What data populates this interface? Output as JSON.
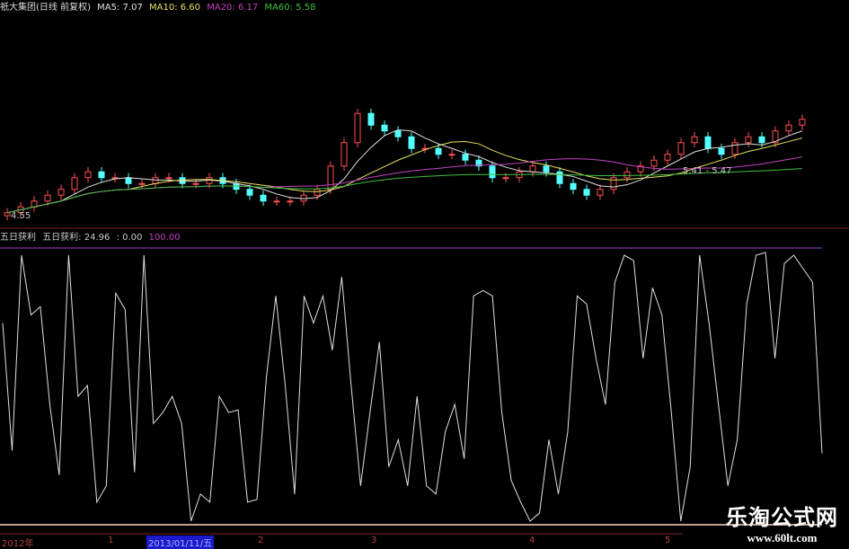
{
  "header": {
    "title": "祇大集团(日线 前复权)",
    "ma5": "MA5: 7.07",
    "ma10": "MA10: 6.60",
    "ma20": "MA20: 6.17",
    "ma60": "MA60: 5.58",
    "low_label": "4.55",
    "range_label": "5.41 - 5.47"
  },
  "oscillator": {
    "name": "五日获利",
    "label": "五日获利: 24.96",
    "v2": ": 0.00",
    "v3": "100.00"
  },
  "x_axis": {
    "labels": [
      "2012年",
      "1",
      "2013/01/11/五",
      "2",
      "3",
      "4",
      "5"
    ]
  },
  "watermark": {
    "title": "乐淘公式网",
    "url": "www.60lt.com"
  },
  "colors": {
    "up": "#ff5050",
    "down": "#54ffff",
    "ma5": "#e0e0e0",
    "ma10": "#e8e060",
    "ma20": "#c040c0",
    "ma60": "#40c040",
    "osc": "#e0e0e0"
  },
  "chart_data": [
    {
      "type": "candlestick",
      "closes": [
        4.6,
        4.7,
        4.8,
        4.9,
        5.0,
        5.2,
        5.3,
        5.2,
        5.2,
        5.1,
        5.1,
        5.2,
        5.2,
        5.1,
        5.1,
        5.2,
        5.1,
        5.0,
        4.9,
        4.8,
        4.8,
        4.8,
        4.9,
        5.0,
        5.4,
        5.8,
        6.3,
        6.1,
        6.0,
        5.9,
        5.7,
        5.7,
        5.6,
        5.6,
        5.5,
        5.4,
        5.2,
        5.2,
        5.3,
        5.4,
        5.3,
        5.1,
        5.0,
        4.9,
        5.0,
        5.2,
        5.3,
        5.4,
        5.5,
        5.6,
        5.8,
        5.9,
        5.7,
        5.6,
        5.8,
        5.9,
        5.8,
        6.0,
        6.1,
        6.2
      ]
    },
    {
      "type": "line",
      "ylim": [
        0,
        100
      ],
      "values": [
        73,
        26,
        98,
        76,
        79,
        43,
        17,
        98,
        46,
        50,
        7,
        13,
        84,
        78,
        18,
        98,
        36,
        40,
        46,
        36,
        0,
        10,
        7,
        46,
        40,
        41,
        7,
        8,
        53,
        83,
        50,
        10,
        83,
        73,
        83,
        63,
        90,
        50,
        13,
        40,
        66,
        20,
        30,
        13,
        46,
        13,
        10,
        33,
        43,
        23,
        83,
        85,
        83,
        40,
        15,
        7,
        0,
        3,
        30,
        10,
        33,
        83,
        80,
        60,
        43,
        88,
        98,
        96,
        60,
        86,
        76,
        40,
        0,
        20,
        98,
        73,
        43,
        13,
        30,
        80,
        98,
        99,
        60,
        95,
        98,
        93,
        88,
        25
      ]
    }
  ]
}
